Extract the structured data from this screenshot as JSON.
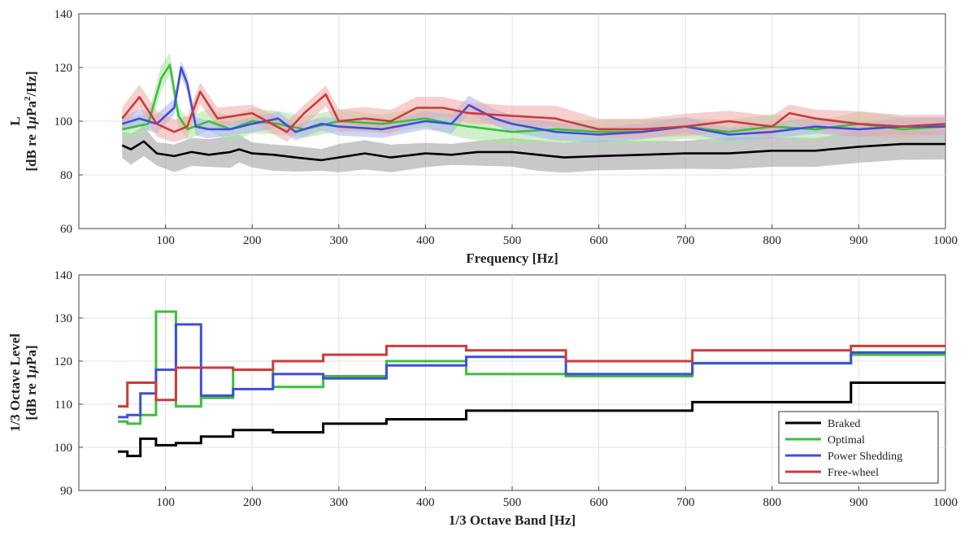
{
  "colors": {
    "Braked": "#000000",
    "Optimal": "#3cbf3c",
    "Power Shedding": "#3f4fd6",
    "Free-wheel": "#cc3b3b",
    "band_Braked": "#9a9a9a",
    "band_Optimal": "#a8e3a0",
    "band_Power Shedding": "#a9b2ef",
    "band_Free-wheel": "#f0a8a8"
  },
  "chart_data": [
    {
      "type": "line",
      "xlabel": "Frequency [Hz]",
      "ylabel_line1": "L",
      "ylabel_line2_prefix": "[dB re 1",
      "ylabel_mu": "μ",
      "ylabel_line2_mid": "Pa",
      "ylabel_sup": "2",
      "ylabel_line2_suffix": "/Hz]",
      "xlim": [
        0,
        1000
      ],
      "ylim": [
        60,
        140
      ],
      "xticks": [
        100,
        200,
        300,
        400,
        500,
        600,
        700,
        800,
        900,
        1000
      ],
      "yticks": [
        60,
        80,
        100,
        120,
        140
      ],
      "grid": true,
      "bands": true,
      "series": [
        {
          "name": "Braked",
          "x": [
            50,
            60,
            75,
            90,
            110,
            130,
            150,
            175,
            185,
            200,
            225,
            250,
            280,
            300,
            330,
            360,
            400,
            430,
            460,
            500,
            530,
            560,
            600,
            650,
            700,
            750,
            800,
            850,
            900,
            950,
            1000
          ],
          "y": [
            91,
            89.5,
            92.5,
            88,
            87,
            88.5,
            87.5,
            88.5,
            89.5,
            88,
            87.5,
            86.5,
            85.5,
            86.5,
            88,
            86.5,
            88,
            87.5,
            88.5,
            88.5,
            87.5,
            86.5,
            87,
            87.5,
            88,
            88,
            89,
            89,
            90.5,
            91.5,
            91.5
          ],
          "band_width": 5
        },
        {
          "name": "Optimal",
          "x": [
            50,
            80,
            95,
            105,
            115,
            125,
            150,
            175,
            200,
            230,
            260,
            300,
            350,
            400,
            430,
            450,
            500,
            550,
            600,
            650,
            700,
            750,
            800,
            850,
            900,
            950,
            1000
          ],
          "y": [
            97,
            99,
            116,
            121,
            102,
            97,
            100,
            97,
            100,
            99,
            97,
            100,
            99,
            101,
            99,
            98,
            96,
            97,
            96,
            96,
            98,
            96,
            98,
            97,
            99,
            97,
            98
          ],
          "band_width": 4
        },
        {
          "name": "Power Shedding",
          "x": [
            50,
            70,
            90,
            110,
            118,
            125,
            135,
            150,
            175,
            200,
            230,
            250,
            280,
            300,
            350,
            400,
            430,
            450,
            480,
            500,
            550,
            600,
            650,
            700,
            750,
            800,
            850,
            900,
            950,
            1000
          ],
          "y": [
            99,
            101,
            99,
            105,
            120,
            114,
            98,
            97,
            97,
            99,
            101,
            96,
            99,
            98,
            97,
            100,
            99,
            106,
            101,
            99,
            96,
            95,
            96,
            98,
            95,
            96,
            98,
            97,
            98,
            98
          ],
          "band_width": 3
        },
        {
          "name": "Free-wheel",
          "x": [
            50,
            70,
            90,
            110,
            125,
            140,
            160,
            200,
            240,
            260,
            285,
            300,
            330,
            360,
            390,
            420,
            450,
            500,
            550,
            600,
            650,
            700,
            750,
            800,
            820,
            850,
            900,
            950,
            1000
          ],
          "y": [
            101,
            109,
            99,
            96,
            98,
            111,
            101,
            103,
            96,
            103,
            110,
            100,
            101,
            100,
            105,
            105,
            103,
            102,
            101,
            97,
            97,
            98,
            100,
            98,
            103,
            101,
            99,
            98,
            99
          ],
          "band_width": 4
        }
      ]
    },
    {
      "type": "line",
      "step": true,
      "xlabel": "1/3 Octave Band [Hz]",
      "ylabel_line1": "1/3 Octave Level",
      "ylabel_line2_prefix": "[dB re 1",
      "ylabel_mu": "μ",
      "ylabel_line2_mid": "Pa",
      "ylabel_sup": "",
      "ylabel_line2_suffix": "]",
      "xlim": [
        0,
        1000
      ],
      "ylim": [
        90,
        140
      ],
      "xticks": [
        100,
        200,
        300,
        400,
        500,
        600,
        700,
        800,
        900,
        1000
      ],
      "yticks": [
        90,
        100,
        110,
        120,
        130,
        140
      ],
      "grid": true,
      "legend_position": "lower-right",
      "band_edges": [
        45,
        56,
        71,
        89,
        112,
        141,
        178,
        224,
        282,
        355,
        447,
        562,
        708,
        891,
        1000
      ],
      "series": [
        {
          "name": "Braked",
          "values": [
            99,
            98,
            102,
            100.5,
            101,
            102.5,
            104,
            103.5,
            105.5,
            106.5,
            108.5,
            108.5,
            110.5,
            115
          ]
        },
        {
          "name": "Optimal",
          "values": [
            106,
            105.5,
            107.5,
            131.5,
            109.5,
            111.5,
            118,
            114,
            116.5,
            120,
            117,
            116.5,
            119.5,
            121.5
          ]
        },
        {
          "name": "Power Shedding",
          "values": [
            107,
            107.5,
            112.5,
            118,
            128.5,
            112,
            113.5,
            117,
            116,
            119,
            121,
            117,
            119.5,
            122
          ]
        },
        {
          "name": "Free-wheel",
          "values": [
            109.5,
            115,
            115,
            111,
            118.5,
            118.5,
            118,
            120,
            121.5,
            123.5,
            122.5,
            120,
            122.5,
            123.5
          ]
        }
      ]
    }
  ],
  "legend": {
    "entries": [
      "Braked",
      "Optimal",
      "Power Shedding",
      "Free-wheel"
    ]
  }
}
